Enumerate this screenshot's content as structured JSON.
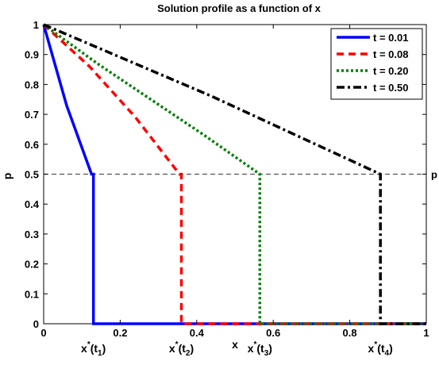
{
  "chart_data": {
    "type": "line",
    "title": "Solution profile as a function of x",
    "xlabel": "x",
    "ylabel": "p",
    "xlim": [
      0,
      1
    ],
    "ylim": [
      0,
      1
    ],
    "grid": false,
    "legend_position": "top-right",
    "x_ticks": [
      "0",
      "0.2",
      "0.4",
      "0.6",
      "0.8",
      "1"
    ],
    "y_ticks": [
      "0",
      "0.1",
      "0.2",
      "0.3",
      "0.4",
      "0.5",
      "0.6",
      "0.7",
      "0.8",
      "0.9",
      "1"
    ],
    "reference_line": {
      "y": 0.5,
      "label": "p",
      "style": "dashed",
      "color": "#555555"
    },
    "series": [
      {
        "name": "t = 0.01",
        "color": "#0000ff",
        "dash": "solid",
        "front_x": 0.13,
        "points": [
          [
            0,
            1
          ],
          [
            0.06,
            0.73
          ],
          [
            0.125,
            0.5
          ],
          [
            0.13,
            0.5
          ],
          [
            0.13,
            0
          ],
          [
            1,
            0
          ]
        ]
      },
      {
        "name": "t = 0.08",
        "color": "#ff0000",
        "dash": "dashed",
        "front_x": 0.36,
        "points": [
          [
            0,
            1
          ],
          [
            0.12,
            0.86
          ],
          [
            0.24,
            0.69
          ],
          [
            0.355,
            0.5
          ],
          [
            0.36,
            0.5
          ],
          [
            0.36,
            0
          ],
          [
            1,
            0
          ]
        ]
      },
      {
        "name": "t = 0.20",
        "color": "#008000",
        "dash": "dotted",
        "front_x": 0.565,
        "points": [
          [
            0,
            1
          ],
          [
            0.14,
            0.87
          ],
          [
            0.28,
            0.75
          ],
          [
            0.42,
            0.63
          ],
          [
            0.565,
            0.5
          ],
          [
            0.565,
            0
          ],
          [
            1,
            0
          ]
        ]
      },
      {
        "name": "t = 0.50",
        "color": "#000000",
        "dash": "dashdot",
        "front_x": 0.88,
        "points": [
          [
            0,
            1
          ],
          [
            0.22,
            0.88
          ],
          [
            0.44,
            0.76
          ],
          [
            0.66,
            0.63
          ],
          [
            0.88,
            0.5
          ],
          [
            0.88,
            0
          ],
          [
            1,
            0
          ]
        ]
      }
    ],
    "front_labels": [
      {
        "base": "x",
        "sup": "*",
        "paren_open": "(t",
        "sub": "1",
        "paren_close": ")",
        "x": 0.13
      },
      {
        "base": "x",
        "sup": "*",
        "paren_open": "(t",
        "sub": "2",
        "paren_close": ")",
        "x": 0.36
      },
      {
        "base": "x",
        "sup": "*",
        "paren_open": "(t",
        "sub": "3",
        "paren_close": ")",
        "x": 0.565
      },
      {
        "base": "x",
        "sup": "*",
        "paren_open": "(t",
        "sub": "4",
        "paren_close": ")",
        "x": 0.88
      }
    ]
  }
}
